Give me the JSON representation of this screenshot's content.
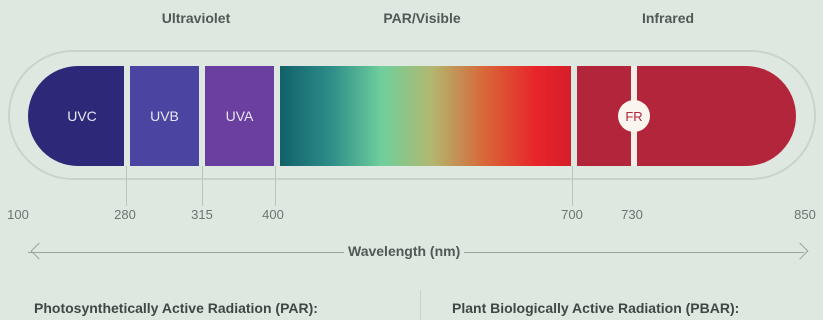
{
  "regions": {
    "ultraviolet": "Ultraviolet",
    "visible": "PAR/Visible",
    "infrared": "Infrared"
  },
  "bands": {
    "uvc": "UVC",
    "uvb": "UVB",
    "uva": "UVA",
    "fr": "FR"
  },
  "ticks": [
    "100",
    "280",
    "315",
    "400",
    "700",
    "730",
    "850"
  ],
  "axis_title": "Wavelength (nm)",
  "footer": {
    "par": "Photosynthetically Active Radiation (PAR):",
    "pbar": "Plant Biologically Active Radiation (PBAR):"
  },
  "colors": {
    "uvc": "#2c2a78",
    "uvb": "#4a45a0",
    "uva": "#6a3fa0",
    "infrared": "#b3253a",
    "background": "#dfe7e1"
  }
}
